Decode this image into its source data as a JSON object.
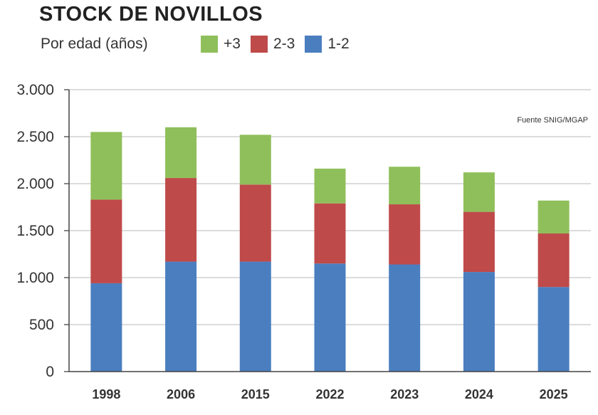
{
  "title": "STOCK DE NOVILLOS",
  "subtitle": "Por edad (años)",
  "source": "Fuente SNIG/MGAP",
  "colors": {
    "+3": "#8fbf5a",
    "2-3": "#bf4a4a",
    "1-2": "#4a7ebf"
  },
  "legend": [
    {
      "label": "+3",
      "color": "#8fbf5a"
    },
    {
      "label": "2-3",
      "color": "#bf4a4a"
    },
    {
      "label": "1-2",
      "color": "#4a7ebf"
    }
  ],
  "chart_data": {
    "type": "bar",
    "stacked": true,
    "title": "STOCK DE NOVILLOS",
    "subtitle": "Por edad (años)",
    "categories": [
      "1998",
      "2006",
      "2015",
      "2022",
      "2023",
      "2024",
      "2025"
    ],
    "series": [
      {
        "name": "1-2",
        "color": "#4a7ebf",
        "values": [
          940,
          1170,
          1170,
          1150,
          1140,
          1060,
          900
        ]
      },
      {
        "name": "2-3",
        "color": "#bf4a4a",
        "values": [
          890,
          890,
          820,
          640,
          640,
          640,
          570
        ]
      },
      {
        "name": "+3",
        "color": "#8fbf5a",
        "values": [
          720,
          540,
          530,
          370,
          400,
          420,
          350
        ]
      }
    ],
    "ylim": [
      0,
      3000
    ],
    "yticks": [
      0,
      500,
      1000,
      1500,
      2000,
      2500,
      3000
    ],
    "ytick_labels": [
      "0",
      "500",
      "1.000",
      "1.500",
      "2.000",
      "2.500",
      "3.000"
    ],
    "grid": true,
    "legend_position": "top"
  }
}
